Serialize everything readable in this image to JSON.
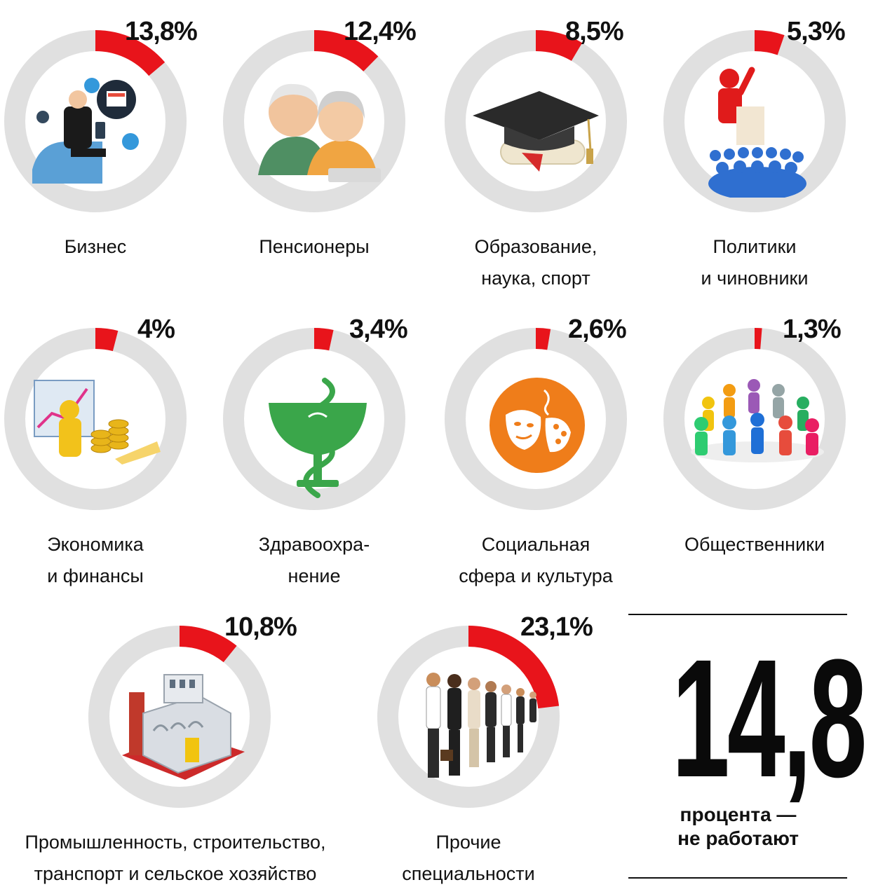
{
  "chart_data": {
    "type": "pie",
    "unit": "%",
    "segments": [
      {
        "label": "Бизнес",
        "value": 13.8,
        "value_text": "13,8%",
        "icon": "business-icon"
      },
      {
        "label": "Пенсионеры",
        "value": 12.4,
        "value_text": "12,4%",
        "icon": "pensioners-icon"
      },
      {
        "label": "Образование,\nнаука, спорт",
        "value": 8.5,
        "value_text": "8,5%",
        "icon": "graduation-cap-icon"
      },
      {
        "label": "Политики\nи чиновники",
        "value": 5.3,
        "value_text": "5,3%",
        "icon": "speaker-podium-icon"
      },
      {
        "label": "Экономика\nи финансы",
        "value": 4,
        "value_text": "4%",
        "icon": "finance-coins-icon"
      },
      {
        "label": "Здравоохра-\nнение",
        "value": 3.4,
        "value_text": "3,4%",
        "icon": "medical-bowl-icon"
      },
      {
        "label": "Социальная\nсфера и культура",
        "value": 2.6,
        "value_text": "2,6%",
        "icon": "theatre-mask-icon"
      },
      {
        "label": "Общественники",
        "value": 1.3,
        "value_text": "1,3%",
        "icon": "people-circle-icon"
      },
      {
        "label": "Промышленность, строительство,\nтранспорт и сельское хозяйство",
        "value": 10.8,
        "value_text": "10,8%",
        "icon": "factory-icon"
      },
      {
        "label": "Прочие\nспециальности",
        "value": 23.1,
        "value_text": "23,1%",
        "icon": "professionals-line-icon"
      }
    ]
  },
  "highlight": {
    "value": "14,8",
    "caption": "процента —\nне работают"
  },
  "colors": {
    "ring": "#e0e0e0",
    "segment": "#e8141b",
    "text": "#111111"
  }
}
